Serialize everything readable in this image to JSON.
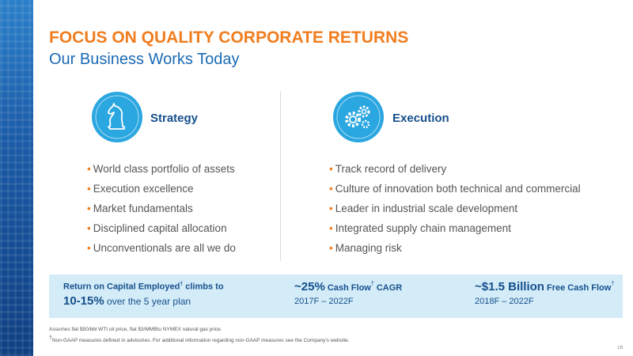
{
  "header": {
    "title": "FOCUS ON QUALITY CORPORATE RETURNS",
    "subtitle": "Our Business Works Today"
  },
  "columns": [
    {
      "heading": "Strategy",
      "bullets": [
        "World class portfolio of assets",
        "Execution excellence",
        "Market fundamentals",
        "Disciplined capital allocation",
        "Unconventionals are all we do"
      ]
    },
    {
      "heading": "Execution",
      "bullets": [
        "Track record of delivery",
        "Culture of innovation both technical and commercial",
        "Leader in industrial scale development",
        "Integrated supply chain management",
        "Managing risk"
      ]
    }
  ],
  "highlights": [
    {
      "lead": "Return on Capital Employed",
      "mark": "†",
      "tail": " climbs to",
      "figure": "10-15%",
      "note": " over the 5 year plan"
    },
    {
      "figure": "~25%",
      "lead": " Cash Flow",
      "mark": "†",
      "tail": " CAGR",
      "period": "2017F – 2022F"
    },
    {
      "figure": "~$1.5 Billion",
      "lead": " Free Cash Flow",
      "mark": "†",
      "period": "2018F – 2022F"
    }
  ],
  "footnotes": [
    {
      "text": "Assumes flat $50/bbl WTI oil price, flat $3/MMBtu NYMEX natural gas price."
    },
    {
      "mark": "†",
      "text": "Non-GAAP measures defined in advisories. For additional information regarding non-GAAP measures see the Company's website."
    }
  ],
  "page_number": "16"
}
